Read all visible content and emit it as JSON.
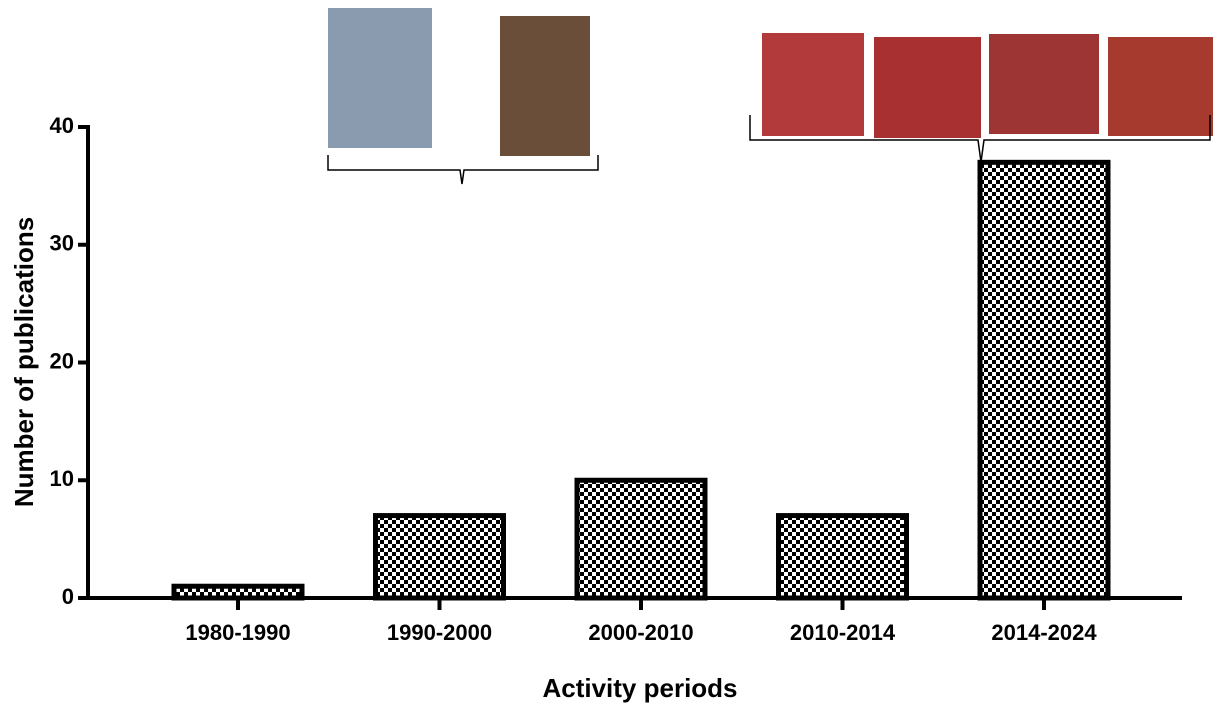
{
  "chart_data": {
    "type": "bar",
    "x_label": "Activity periods",
    "y_label": "Number of publications",
    "categories": [
      "1980-1990",
      "1990-2000",
      "2000-2010",
      "2010-2014",
      "2014-2024"
    ],
    "values": [
      1,
      7,
      10,
      7,
      37
    ],
    "color": "#000000",
    "ylim": [
      0,
      40
    ],
    "yticks": [
      0,
      10,
      20,
      30,
      40
    ]
  }
}
